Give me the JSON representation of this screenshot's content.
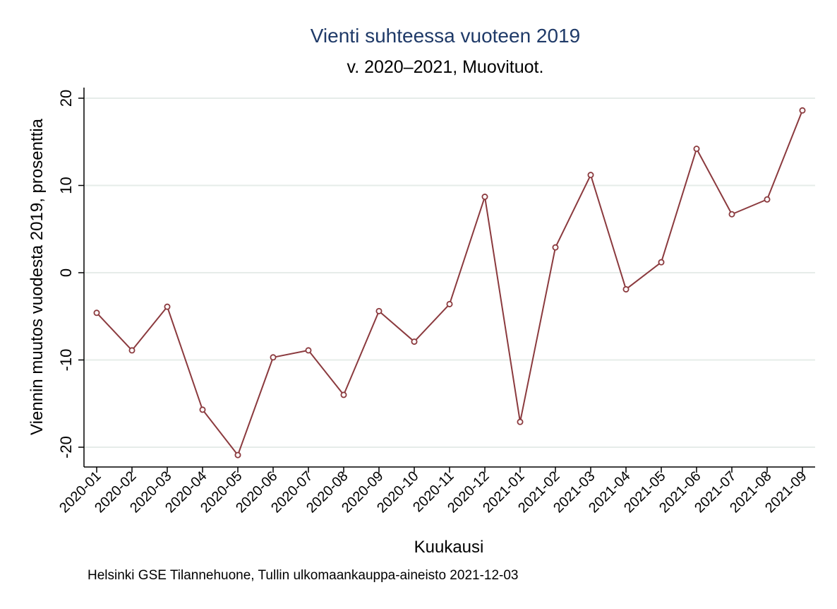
{
  "chart_data": {
    "type": "line",
    "title": "Vienti suhteessa vuoteen 2019",
    "subtitle": "v. 2020–2021, Muovituot.",
    "xlabel": "Kuukausi",
    "ylabel": "Viennin muutos vuodesta 2019, prosenttia",
    "note": "Helsinki GSE Tilannehuone, Tullin ulkomaankauppa-aineisto 2021-12-03",
    "categories": [
      "2020-01",
      "2020-02",
      "2020-03",
      "2020-04",
      "2020-05",
      "2020-06",
      "2020-07",
      "2020-08",
      "2020-09",
      "2020-10",
      "2020-11",
      "2020-12",
      "2021-01",
      "2021-02",
      "2021-03",
      "2021-04",
      "2021-05",
      "2021-06",
      "2021-07",
      "2021-08",
      "2021-09"
    ],
    "series": [
      {
        "values": [
          -4.6,
          -8.9,
          -3.9,
          -15.7,
          -20.9,
          -9.7,
          -8.9,
          -14.0,
          -4.4,
          -7.9,
          -3.6,
          8.7,
          -17.1,
          2.9,
          11.2,
          -1.9,
          1.2,
          14.2,
          6.7,
          8.4,
          18.6
        ]
      }
    ],
    "ylim": [
      -22.3,
      20
    ],
    "yticks": [
      -20,
      -10,
      0,
      10,
      20
    ],
    "grid": true,
    "colors": {
      "line": "#8b3a3e",
      "grid": "#e6ece9",
      "title": "#1f3a68"
    }
  }
}
